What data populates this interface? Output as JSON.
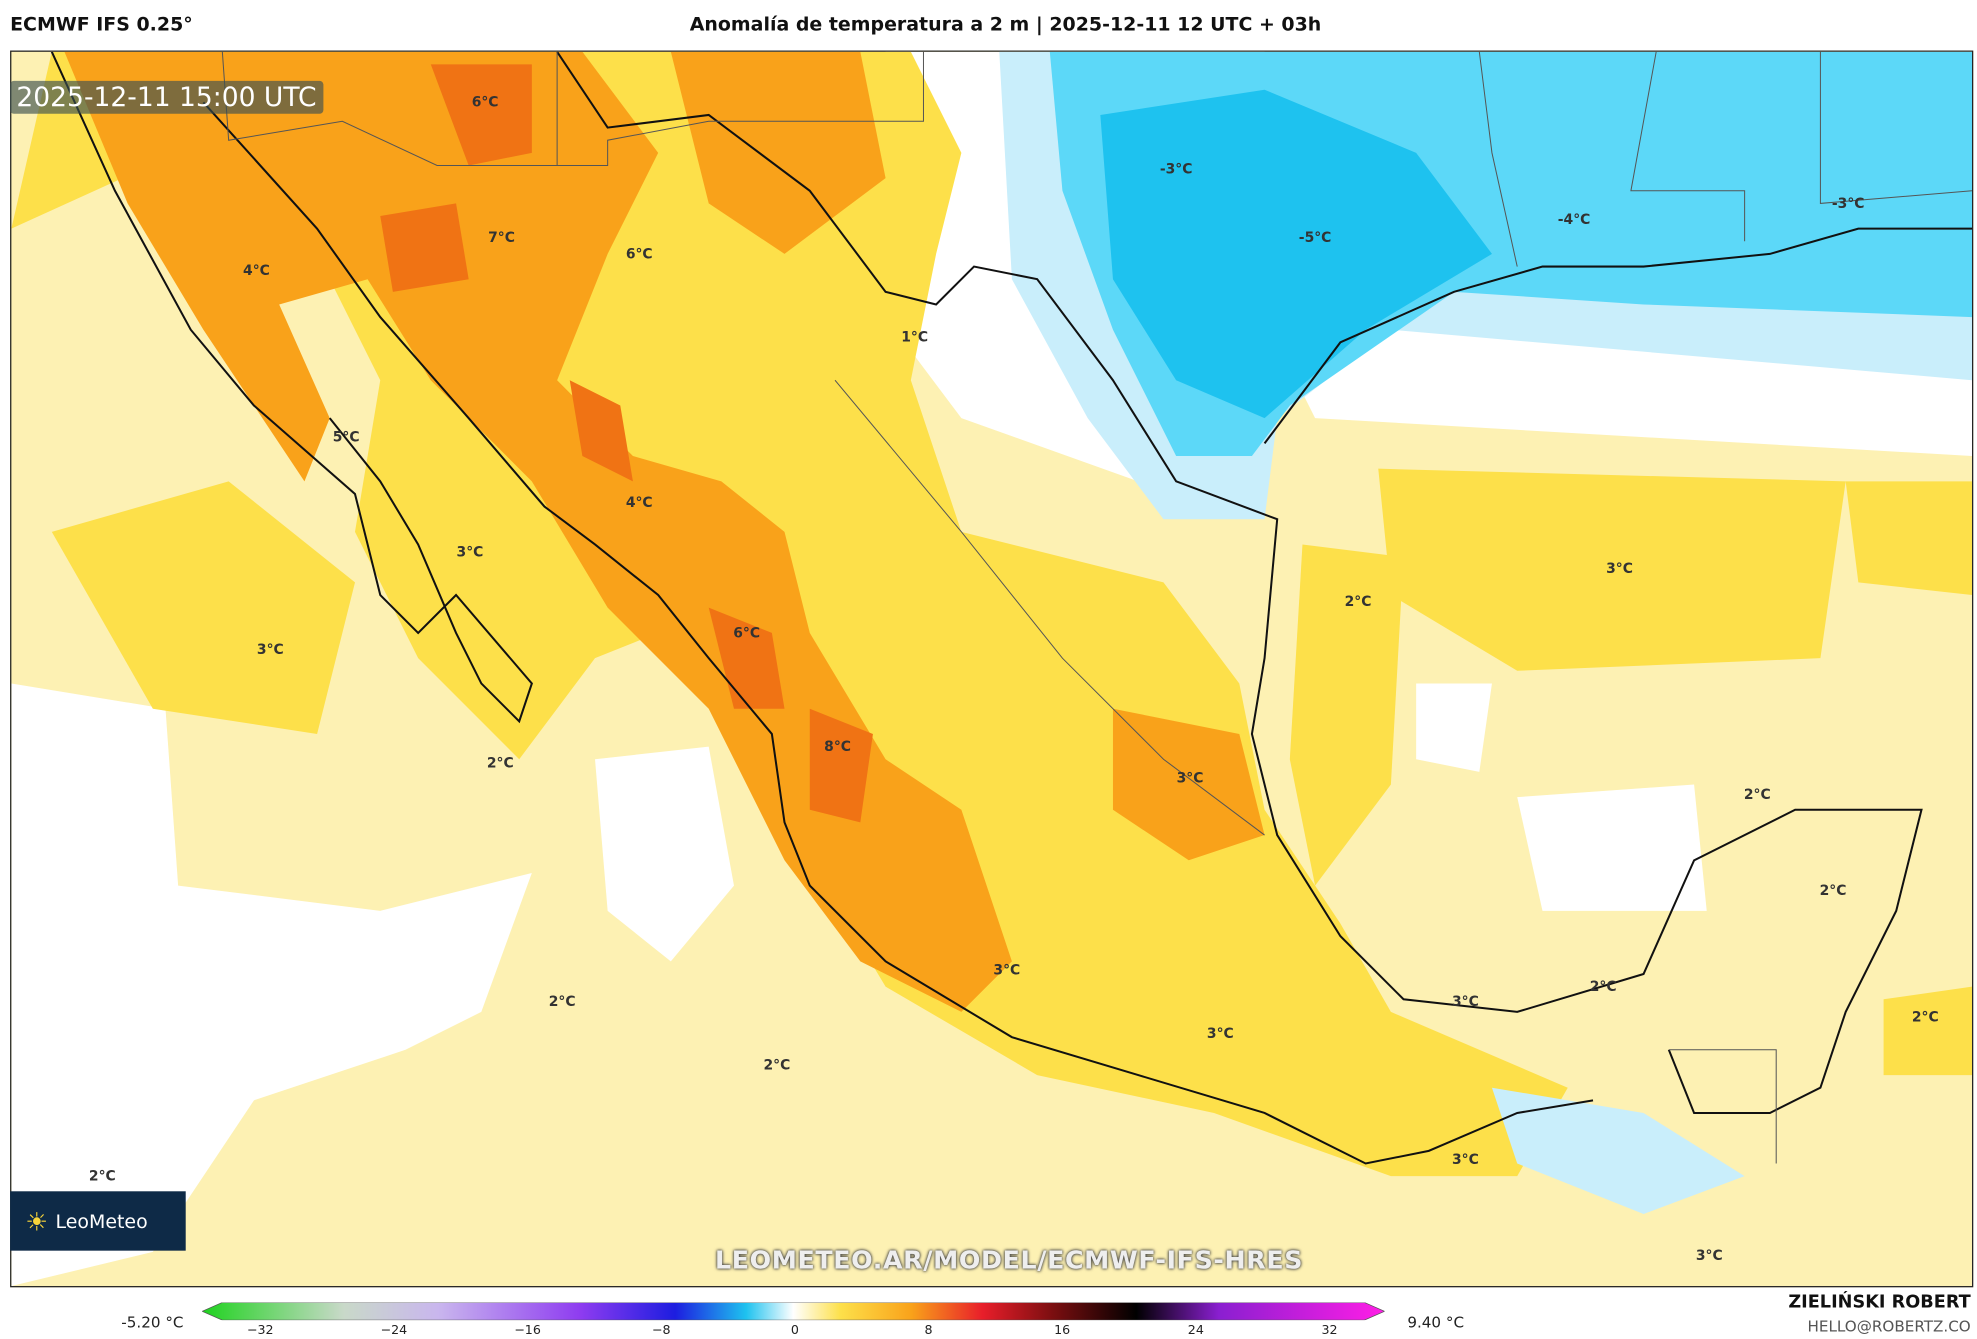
{
  "header": {
    "model": "ECMWF IFS 0.25°",
    "title": "Anomalía de temperatura a 2 m | 2025-12-11 12 UTC + 03h"
  },
  "map": {
    "valid_time": "2025-12-11 15:00 UTC",
    "watermark_url": "LEOMETEO.AR/MODEL/ECMWF-IFS-HRES",
    "logo_text": "LeoMeteo",
    "labels": [
      "6°C",
      "7°C",
      "6°C",
      "4°C",
      "1°C",
      "5°C",
      "4°C",
      "3°C",
      "3°C",
      "6°C",
      "2°C",
      "8°C",
      "3°C",
      "3°C",
      "3°C",
      "2°C",
      "2°C",
      "2°C",
      "-3°C",
      "-5°C",
      "-4°C",
      "-3°C",
      "2°C",
      "3°C",
      "2°C",
      "2°C",
      "2°C",
      "3°C",
      "2°C",
      "3°C",
      "3°C"
    ],
    "colors": {
      "light_yellow": "#fdf1b3",
      "yellow": "#fde04a",
      "orange": "#f9a21a",
      "dark_orange": "#f07314",
      "light_blue": "#c9eefb",
      "cyan": "#5cd8f8",
      "deep_cyan": "#1ec2ef"
    }
  },
  "colorbar": {
    "min_label": "-5.20 °C",
    "max_label": "9.40 °C",
    "ticks": [
      "−32",
      "−24",
      "−16",
      "−8",
      "0",
      "8",
      "16",
      "24",
      "32"
    ]
  },
  "footer": {
    "author": "ZIELIŃSKI ROBERT",
    "email": "HELLO@ROBERTZ.CO"
  }
}
